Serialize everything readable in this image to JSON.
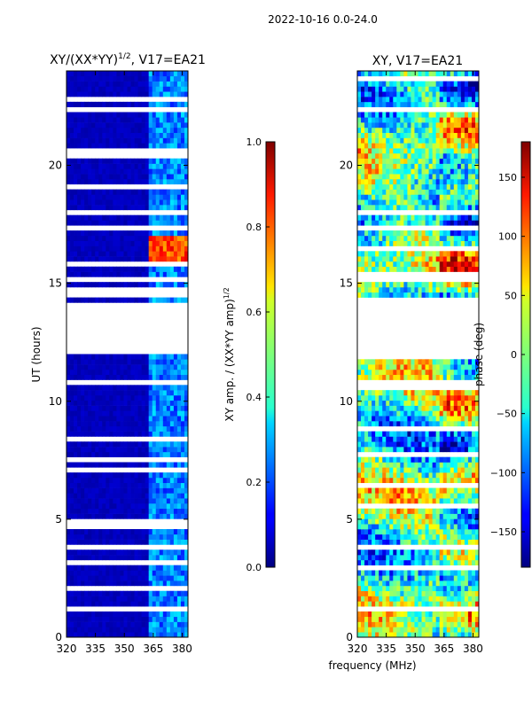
{
  "figure_title": "2022-10-16 0.0-24.0",
  "shared_xlabel": "frequency (MHz)",
  "chart_data": [
    {
      "type": "heatmap",
      "title_main": "XY/(XX*YY)",
      "title_sup": "1/2",
      "title_tail": ", V17=EA21",
      "ylabel": "UT (hours)",
      "xlim": [
        320,
        383
      ],
      "ylim": [
        0,
        24
      ],
      "xticks": [
        320,
        335,
        350,
        365,
        380
      ],
      "yticks": [
        0,
        5,
        10,
        15,
        20
      ],
      "colorbar": {
        "label_main": "XY amp. / (XX*YY amp)",
        "label_sup": "1/2",
        "range": [
          0.0,
          1.0
        ],
        "ticks": [
          "0.0",
          "0.2",
          "0.4",
          "0.6",
          "0.8",
          "1.0"
        ],
        "tick_values": [
          0.0,
          0.2,
          0.4,
          0.6,
          0.8,
          1.0
        ]
      },
      "flagged_time_bands_hours": [
        [
          1.05,
          1.35
        ],
        [
          10.6,
          10.85
        ],
        [
          12.0,
          14.2
        ],
        [
          22.35,
          22.5
        ]
      ],
      "band_features": [
        {
          "freq_range_mhz": [
            362,
            383
          ],
          "time_range_hours": [
            0,
            24
          ],
          "typical_value": 0.25
        },
        {
          "freq_range_mhz": [
            362,
            383
          ],
          "time_range_hours": [
            15.9,
            17.1
          ],
          "typical_value": 0.8
        }
      ]
    },
    {
      "type": "heatmap",
      "title": "XY, V17=EA21",
      "ylabel": "",
      "xlim": [
        320,
        383
      ],
      "ylim": [
        0,
        24
      ],
      "xticks": [
        320,
        335,
        350,
        365,
        380
      ],
      "yticks": [
        0,
        5,
        10,
        15,
        20
      ],
      "colorbar": {
        "label": "phase (deg)",
        "range": [
          -180,
          180
        ],
        "ticks": [
          "150",
          "100",
          "50",
          "0",
          "−50",
          "−100",
          "−150"
        ],
        "tick_values": [
          150,
          100,
          50,
          0,
          -50,
          -100,
          -150
        ]
      },
      "flagged_time_bands_hours": [
        [
          1.05,
          1.35
        ],
        [
          10.6,
          10.85
        ],
        [
          12.0,
          14.2
        ],
        [
          22.35,
          22.5
        ]
      ]
    }
  ]
}
